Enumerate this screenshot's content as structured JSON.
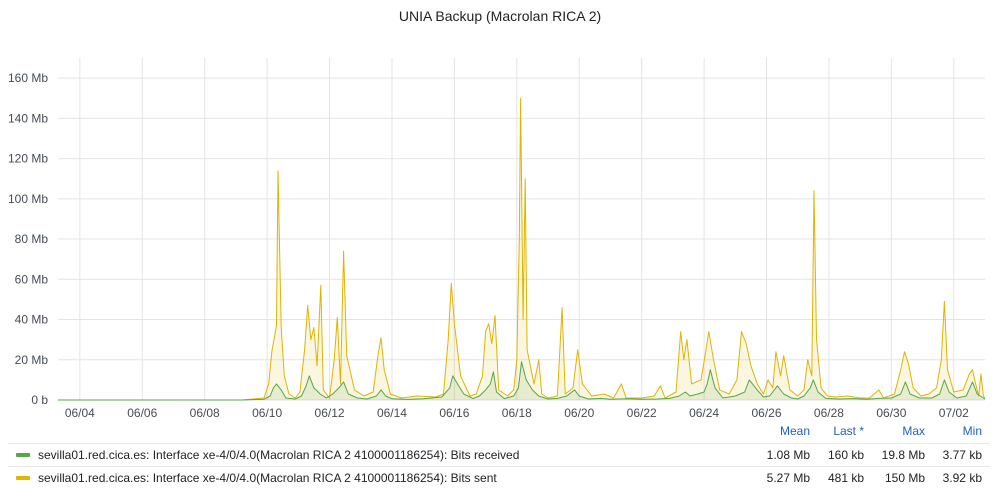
{
  "title": "UNIA Backup (Macrolan RICA 2)",
  "chart_data": {
    "type": "area",
    "title": "UNIA Backup (Macrolan RICA 2)",
    "unit": "Mb",
    "y_ticks": [
      "0 b",
      "20 Mb",
      "40 Mb",
      "60 Mb",
      "80 Mb",
      "100 Mb",
      "120 Mb",
      "140 Mb",
      "160 Mb"
    ],
    "ylim": [
      0,
      170
    ],
    "x_ticks": [
      "06/04",
      "06/06",
      "06/08",
      "06/10",
      "06/12",
      "06/14",
      "06/16",
      "06/18",
      "06/20",
      "06/22",
      "06/24",
      "06/26",
      "06/28",
      "06/30",
      "07/02"
    ],
    "xlim_days": [
      3.3,
      33.0
    ],
    "grid": true,
    "legend_position": "bottom",
    "series": [
      {
        "name": "sevilla01.red.cica.es: Interface xe-4/0/4.0(Macrolan RICA 2 4100001186254): Bits received",
        "color": "#56a64b",
        "points": [
          [
            3.3,
            0
          ],
          [
            9.2,
            0
          ],
          [
            9.9,
            0.4
          ],
          [
            10.1,
            2
          ],
          [
            10.2,
            6
          ],
          [
            10.3,
            8
          ],
          [
            10.45,
            5
          ],
          [
            10.6,
            1
          ],
          [
            10.9,
            0.5
          ],
          [
            11.1,
            2
          ],
          [
            11.25,
            7
          ],
          [
            11.35,
            12
          ],
          [
            11.5,
            6
          ],
          [
            11.7,
            3
          ],
          [
            11.9,
            1
          ],
          [
            12.1,
            3
          ],
          [
            12.3,
            6
          ],
          [
            12.45,
            9
          ],
          [
            12.6,
            3
          ],
          [
            12.9,
            1
          ],
          [
            13.2,
            0.5
          ],
          [
            13.5,
            2
          ],
          [
            13.65,
            5
          ],
          [
            13.8,
            2
          ],
          [
            14.0,
            0.6
          ],
          [
            14.5,
            0.3
          ],
          [
            15.0,
            0.6
          ],
          [
            15.6,
            1.5
          ],
          [
            15.85,
            6
          ],
          [
            15.95,
            12
          ],
          [
            16.1,
            8
          ],
          [
            16.3,
            3
          ],
          [
            16.6,
            0.7
          ],
          [
            16.8,
            2
          ],
          [
            17.0,
            5
          ],
          [
            17.15,
            8
          ],
          [
            17.25,
            14
          ],
          [
            17.35,
            4
          ],
          [
            17.6,
            0.7
          ],
          [
            17.9,
            2
          ],
          [
            18.05,
            6
          ],
          [
            18.15,
            19
          ],
          [
            18.3,
            10
          ],
          [
            18.5,
            5
          ],
          [
            18.7,
            2
          ],
          [
            19.0,
            0.5
          ],
          [
            19.3,
            0.8
          ],
          [
            19.6,
            2
          ],
          [
            19.85,
            5
          ],
          [
            20.0,
            2
          ],
          [
            20.3,
            0.5
          ],
          [
            20.7,
            0.8
          ],
          [
            21.0,
            0.4
          ],
          [
            21.5,
            0.6
          ],
          [
            22.0,
            0.4
          ],
          [
            22.5,
            0.5
          ],
          [
            22.9,
            0.8
          ],
          [
            23.2,
            2
          ],
          [
            23.4,
            4
          ],
          [
            23.55,
            2
          ],
          [
            23.8,
            3
          ],
          [
            24.0,
            4
          ],
          [
            24.1,
            8
          ],
          [
            24.2,
            15
          ],
          [
            24.35,
            6
          ],
          [
            24.6,
            1
          ],
          [
            25.0,
            2
          ],
          [
            25.3,
            4
          ],
          [
            25.45,
            10
          ],
          [
            25.7,
            5
          ],
          [
            25.9,
            1.5
          ],
          [
            26.1,
            2
          ],
          [
            26.35,
            7
          ],
          [
            26.55,
            3
          ],
          [
            26.8,
            1
          ],
          [
            27.0,
            0.5
          ],
          [
            27.2,
            2
          ],
          [
            27.4,
            6
          ],
          [
            27.5,
            10
          ],
          [
            27.65,
            4
          ],
          [
            27.9,
            0.8
          ],
          [
            28.3,
            0.5
          ],
          [
            28.8,
            0.7
          ],
          [
            29.2,
            0.4
          ],
          [
            29.6,
            0.8
          ],
          [
            30.0,
            1
          ],
          [
            30.3,
            3
          ],
          [
            30.45,
            9
          ],
          [
            30.6,
            3
          ],
          [
            30.9,
            1
          ],
          [
            31.3,
            1
          ],
          [
            31.55,
            3
          ],
          [
            31.7,
            10
          ],
          [
            31.85,
            4
          ],
          [
            32.1,
            1
          ],
          [
            32.4,
            2
          ],
          [
            32.6,
            9
          ],
          [
            32.75,
            3
          ],
          [
            33.0,
            0.5
          ]
        ]
      },
      {
        "name": "sevilla01.red.cica.es: Interface xe-4/0/4.0(Macrolan RICA 2 4100001186254): Bits sent",
        "color": "#e0b400",
        "points": [
          [
            3.3,
            0
          ],
          [
            9.2,
            0
          ],
          [
            9.9,
            1
          ],
          [
            10.05,
            8
          ],
          [
            10.15,
            24
          ],
          [
            10.3,
            37
          ],
          [
            10.35,
            114
          ],
          [
            10.45,
            36
          ],
          [
            10.55,
            12
          ],
          [
            10.7,
            3
          ],
          [
            10.9,
            1
          ],
          [
            11.05,
            4
          ],
          [
            11.2,
            25
          ],
          [
            11.3,
            47
          ],
          [
            11.4,
            30
          ],
          [
            11.5,
            36
          ],
          [
            11.6,
            17
          ],
          [
            11.72,
            57
          ],
          [
            11.8,
            5
          ],
          [
            12.0,
            1
          ],
          [
            12.15,
            20
          ],
          [
            12.25,
            41
          ],
          [
            12.35,
            8
          ],
          [
            12.45,
            74
          ],
          [
            12.55,
            22
          ],
          [
            12.8,
            5
          ],
          [
            13.1,
            2
          ],
          [
            13.4,
            4
          ],
          [
            13.55,
            22
          ],
          [
            13.65,
            31
          ],
          [
            13.75,
            15
          ],
          [
            13.95,
            3
          ],
          [
            14.3,
            1
          ],
          [
            14.8,
            2
          ],
          [
            15.4,
            1.5
          ],
          [
            15.65,
            3
          ],
          [
            15.8,
            30
          ],
          [
            15.9,
            58
          ],
          [
            16.0,
            38
          ],
          [
            16.2,
            12
          ],
          [
            16.5,
            2
          ],
          [
            16.7,
            3
          ],
          [
            16.9,
            12
          ],
          [
            17.0,
            34
          ],
          [
            17.1,
            38
          ],
          [
            17.2,
            28
          ],
          [
            17.3,
            42
          ],
          [
            17.42,
            5
          ],
          [
            17.7,
            2
          ],
          [
            17.9,
            5
          ],
          [
            18.0,
            20
          ],
          [
            18.08,
            80
          ],
          [
            18.12,
            150
          ],
          [
            18.2,
            40
          ],
          [
            18.27,
            110
          ],
          [
            18.33,
            25
          ],
          [
            18.55,
            8
          ],
          [
            18.7,
            20
          ],
          [
            18.8,
            3
          ],
          [
            19.0,
            1
          ],
          [
            19.3,
            2
          ],
          [
            19.45,
            46
          ],
          [
            19.55,
            3
          ],
          [
            19.8,
            6
          ],
          [
            19.95,
            25
          ],
          [
            20.1,
            8
          ],
          [
            20.4,
            2
          ],
          [
            20.8,
            3
          ],
          [
            21.1,
            1
          ],
          [
            21.35,
            8
          ],
          [
            21.5,
            1
          ],
          [
            22.0,
            1
          ],
          [
            22.4,
            2
          ],
          [
            22.6,
            7
          ],
          [
            22.75,
            1
          ],
          [
            23.1,
            4
          ],
          [
            23.25,
            34
          ],
          [
            23.35,
            20
          ],
          [
            23.45,
            30
          ],
          [
            23.6,
            8
          ],
          [
            23.9,
            10
          ],
          [
            24.05,
            24
          ],
          [
            24.15,
            34
          ],
          [
            24.3,
            20
          ],
          [
            24.5,
            5
          ],
          [
            24.8,
            3
          ],
          [
            25.05,
            10
          ],
          [
            25.2,
            34
          ],
          [
            25.35,
            28
          ],
          [
            25.5,
            17
          ],
          [
            25.7,
            8
          ],
          [
            25.9,
            3
          ],
          [
            26.05,
            10
          ],
          [
            26.2,
            6
          ],
          [
            26.3,
            24
          ],
          [
            26.45,
            12
          ],
          [
            26.55,
            22
          ],
          [
            26.75,
            5
          ],
          [
            27.0,
            2
          ],
          [
            27.2,
            5
          ],
          [
            27.32,
            20
          ],
          [
            27.45,
            12
          ],
          [
            27.52,
            104
          ],
          [
            27.6,
            30
          ],
          [
            27.75,
            6
          ],
          [
            27.95,
            2
          ],
          [
            28.2,
            1.5
          ],
          [
            28.6,
            2
          ],
          [
            29.0,
            1
          ],
          [
            29.3,
            1
          ],
          [
            29.6,
            5
          ],
          [
            29.75,
            1
          ],
          [
            30.1,
            3
          ],
          [
            30.3,
            15
          ],
          [
            30.42,
            24
          ],
          [
            30.55,
            18
          ],
          [
            30.7,
            6
          ],
          [
            30.95,
            2
          ],
          [
            31.2,
            3
          ],
          [
            31.45,
            6
          ],
          [
            31.6,
            20
          ],
          [
            31.7,
            49
          ],
          [
            31.8,
            15
          ],
          [
            32.0,
            4
          ],
          [
            32.3,
            5
          ],
          [
            32.5,
            13
          ],
          [
            32.6,
            15
          ],
          [
            32.7,
            8
          ],
          [
            32.8,
            2
          ],
          [
            32.87,
            13
          ],
          [
            32.95,
            2
          ],
          [
            33.0,
            1
          ]
        ]
      }
    ]
  },
  "legend": {
    "headers": [
      "Mean",
      "Last *",
      "Max",
      "Min"
    ],
    "rows": [
      {
        "name": "sevilla01.red.cica.es: Interface xe-4/0/4.0(Macrolan RICA 2 4100001186254): Bits received",
        "color": "#56a64b",
        "mean": "1.08 Mb",
        "last": "160 kb",
        "max": "19.8 Mb",
        "min": "3.77 kb"
      },
      {
        "name": "sevilla01.red.cica.es: Interface xe-4/0/4.0(Macrolan RICA 2 4100001186254): Bits sent",
        "color": "#e0b400",
        "mean": "5.27 Mb",
        "last": "481 kb",
        "max": "150 Mb",
        "min": "3.92 kb"
      }
    ]
  }
}
